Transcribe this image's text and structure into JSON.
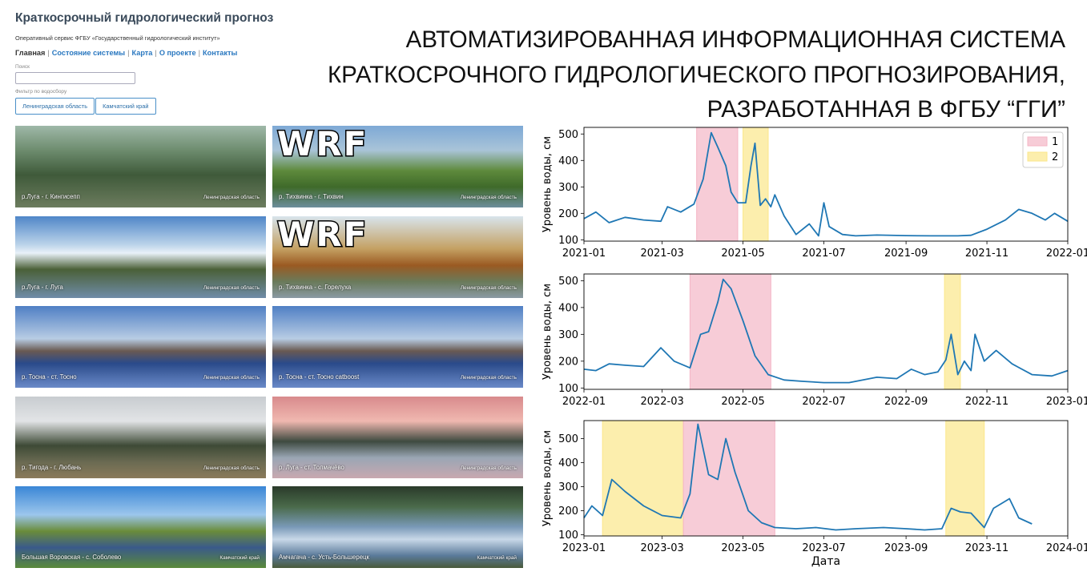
{
  "site": {
    "title": "Краткосрочный гидрологический прогноз",
    "subtitle": "Оперативный сервис ФГБУ «Государственный гидрологический институт»",
    "nav": [
      "Главная",
      "Состояние системы",
      "Карта",
      "О проекте",
      "Контакты"
    ],
    "search_label": "Поиск",
    "search_value": "",
    "filter_label": "Фильтр по водосбору",
    "filters": [
      "Ленинградская область",
      "Камчатский край"
    ]
  },
  "cards": [
    {
      "name": "р.Луга - г. Кингисепп",
      "region": "Ленинградская область",
      "wrf": false,
      "theme": "aerial"
    },
    {
      "name": "р. Тихвинка - г. Тихвин",
      "region": "Ленинградская область",
      "wrf": true,
      "wrf_label": "WRF",
      "theme": "summer"
    },
    {
      "name": "р.Луга - г. Луга",
      "region": "Ленинградская область",
      "wrf": false,
      "theme": "sky"
    },
    {
      "name": "р. Тихвинка - с. Горелуха",
      "region": "Ленинградская область",
      "wrf": true,
      "wrf_label": "WRF",
      "theme": "autumn"
    },
    {
      "name": "р. Тосна - ст. Тосно",
      "region": "Ленинградская область",
      "wrf": false,
      "theme": "winter"
    },
    {
      "name": "р. Тосна - ст. Тосно catboost",
      "region": "Ленинградская область",
      "wrf": false,
      "theme": "winter"
    },
    {
      "name": "р. Тигода - г. Любань",
      "region": "Ленинградская область",
      "wrf": false,
      "theme": "grey"
    },
    {
      "name": "р. Луга - ст. Толмачёво",
      "region": "Ленинградская область",
      "wrf": false,
      "theme": "dusk"
    },
    {
      "name": "Большая Воровская - с. Соболево",
      "region": "Камчатский край",
      "wrf": false,
      "theme": "river"
    },
    {
      "name": "Амчагача - с. Усть-Большерецк",
      "region": "Камчатский край",
      "wrf": false,
      "theme": "rapids"
    }
  ],
  "headline": {
    "line1": "АВТОМАТИЗИРОВАННАЯ ИНФОРМАЦИОННАЯ СИСТЕМА",
    "line2": "КРАТКОСРОЧНОГО  ГИДРОЛОГИЧЕСКОГО ПРОГНОЗИРОВАНИЯ,",
    "line3": "РАЗРАБОТАННАЯ В ФГБУ “ГГИ”"
  },
  "colors": {
    "line": "#1f77b4",
    "band1": "#f4b6c6",
    "band2": "#fbe78a",
    "link": "#2a78c0"
  },
  "chart_data": [
    {
      "type": "line",
      "ylabel": "Уровень воды, см",
      "xlabel": "",
      "x_ticks": [
        "2021-01",
        "2021-03",
        "2021-05",
        "2021-07",
        "2021-09",
        "2021-11",
        "2022-01"
      ],
      "y_ticks": [
        100,
        200,
        300,
        400,
        500
      ],
      "xlim": [
        "2021-01",
        "2022-01"
      ],
      "ylim": [
        95,
        525
      ],
      "legend": {
        "position": "top-right",
        "entries": [
          "1",
          "2"
        ]
      },
      "bands": [
        {
          "type": 1,
          "from": "2021-03-27",
          "to": "2021-04-27"
        },
        {
          "type": 2,
          "from": "2021-05-01",
          "to": "2021-05-20"
        }
      ],
      "series": [
        {
          "x": [
            "2021-01-01",
            "2021-01-10",
            "2021-01-20",
            "2021-02-01",
            "2021-02-15",
            "2021-02-28",
            "2021-03-05",
            "2021-03-15",
            "2021-03-25",
            "2021-04-01",
            "2021-04-07",
            "2021-04-12",
            "2021-04-18",
            "2021-04-22",
            "2021-04-27",
            "2021-05-03",
            "2021-05-07",
            "2021-05-10",
            "2021-05-14",
            "2021-05-18",
            "2021-05-22",
            "2021-05-25",
            "2021-06-01",
            "2021-06-10",
            "2021-06-20",
            "2021-06-27",
            "2021-07-01",
            "2021-07-05",
            "2021-07-15",
            "2021-07-25",
            "2021-08-10",
            "2021-09-01",
            "2021-09-20",
            "2021-10-10",
            "2021-10-20",
            "2021-11-01",
            "2021-11-15",
            "2021-11-25",
            "2021-12-05",
            "2021-12-15",
            "2021-12-22",
            "2022-01-01"
          ],
          "y": [
            180,
            205,
            165,
            185,
            175,
            170,
            225,
            205,
            235,
            330,
            505,
            450,
            380,
            280,
            240,
            240,
            380,
            465,
            230,
            255,
            225,
            270,
            190,
            120,
            160,
            115,
            240,
            150,
            120,
            115,
            118,
            116,
            115,
            115,
            117,
            140,
            175,
            215,
            200,
            175,
            200,
            170
          ]
        }
      ]
    },
    {
      "type": "line",
      "ylabel": "Уровень воды, см",
      "xlabel": "",
      "x_ticks": [
        "2022-01",
        "2022-03",
        "2022-05",
        "2022-07",
        "2022-09",
        "2022-11",
        "2023-01"
      ],
      "y_ticks": [
        100,
        200,
        300,
        400,
        500
      ],
      "xlim": [
        "2022-01",
        "2023-01"
      ],
      "ylim": [
        95,
        525
      ],
      "bands": [
        {
          "type": 1,
          "from": "2022-03-22",
          "to": "2022-05-22"
        },
        {
          "type": 2,
          "from": "2022-09-30",
          "to": "2022-10-12"
        }
      ],
      "series": [
        {
          "x": [
            "2022-01-01",
            "2022-01-10",
            "2022-01-20",
            "2022-02-01",
            "2022-02-15",
            "2022-02-28",
            "2022-03-10",
            "2022-03-22",
            "2022-03-30",
            "2022-04-05",
            "2022-04-12",
            "2022-04-16",
            "2022-04-22",
            "2022-05-01",
            "2022-05-10",
            "2022-05-20",
            "2022-06-01",
            "2022-06-15",
            "2022-07-01",
            "2022-07-20",
            "2022-08-10",
            "2022-08-25",
            "2022-09-05",
            "2022-09-15",
            "2022-09-25",
            "2022-10-01",
            "2022-10-05",
            "2022-10-10",
            "2022-10-15",
            "2022-10-20",
            "2022-10-23",
            "2022-10-30",
            "2022-11-08",
            "2022-11-20",
            "2022-12-05",
            "2022-12-20",
            "2023-01-01"
          ],
          "y": [
            170,
            165,
            190,
            185,
            180,
            250,
            200,
            175,
            300,
            310,
            420,
            505,
            470,
            350,
            220,
            150,
            130,
            125,
            120,
            120,
            140,
            135,
            170,
            150,
            160,
            205,
            300,
            150,
            200,
            165,
            300,
            200,
            240,
            190,
            150,
            145,
            165
          ]
        }
      ]
    },
    {
      "type": "line",
      "ylabel": "Уровень воды, см",
      "xlabel": "Дата",
      "x_ticks": [
        "2023-01",
        "2023-03",
        "2023-05",
        "2023-07",
        "2023-09",
        "2023-11",
        "2024-01"
      ],
      "y_ticks": [
        100,
        200,
        300,
        400,
        500
      ],
      "xlim": [
        "2023-01",
        "2024-01"
      ],
      "ylim": [
        95,
        575
      ],
      "bands": [
        {
          "type": 2,
          "from": "2023-01-15",
          "to": "2023-03-17"
        },
        {
          "type": 1,
          "from": "2023-03-17",
          "to": "2023-05-25"
        },
        {
          "type": 2,
          "from": "2023-10-01",
          "to": "2023-10-30"
        }
      ],
      "series": [
        {
          "x": [
            "2023-01-01",
            "2023-01-07",
            "2023-01-15",
            "2023-01-22",
            "2023-02-01",
            "2023-02-15",
            "2023-03-01",
            "2023-03-15",
            "2023-03-22",
            "2023-03-28",
            "2023-04-05",
            "2023-04-12",
            "2023-04-18",
            "2023-04-25",
            "2023-05-05",
            "2023-05-15",
            "2023-05-25",
            "2023-06-10",
            "2023-06-25",
            "2023-07-10",
            "2023-07-25",
            "2023-08-15",
            "2023-09-01",
            "2023-09-15",
            "2023-09-28",
            "2023-10-05",
            "2023-10-12",
            "2023-10-20",
            "2023-10-30",
            "2023-11-06",
            "2023-11-12",
            "2023-11-18",
            "2023-11-25",
            "2023-12-05"
          ],
          "y": [
            170,
            220,
            180,
            330,
            280,
            220,
            180,
            170,
            270,
            560,
            350,
            330,
            500,
            360,
            200,
            150,
            130,
            125,
            130,
            120,
            125,
            130,
            125,
            120,
            125,
            210,
            195,
            190,
            130,
            210,
            230,
            250,
            170,
            145
          ]
        }
      ]
    }
  ]
}
